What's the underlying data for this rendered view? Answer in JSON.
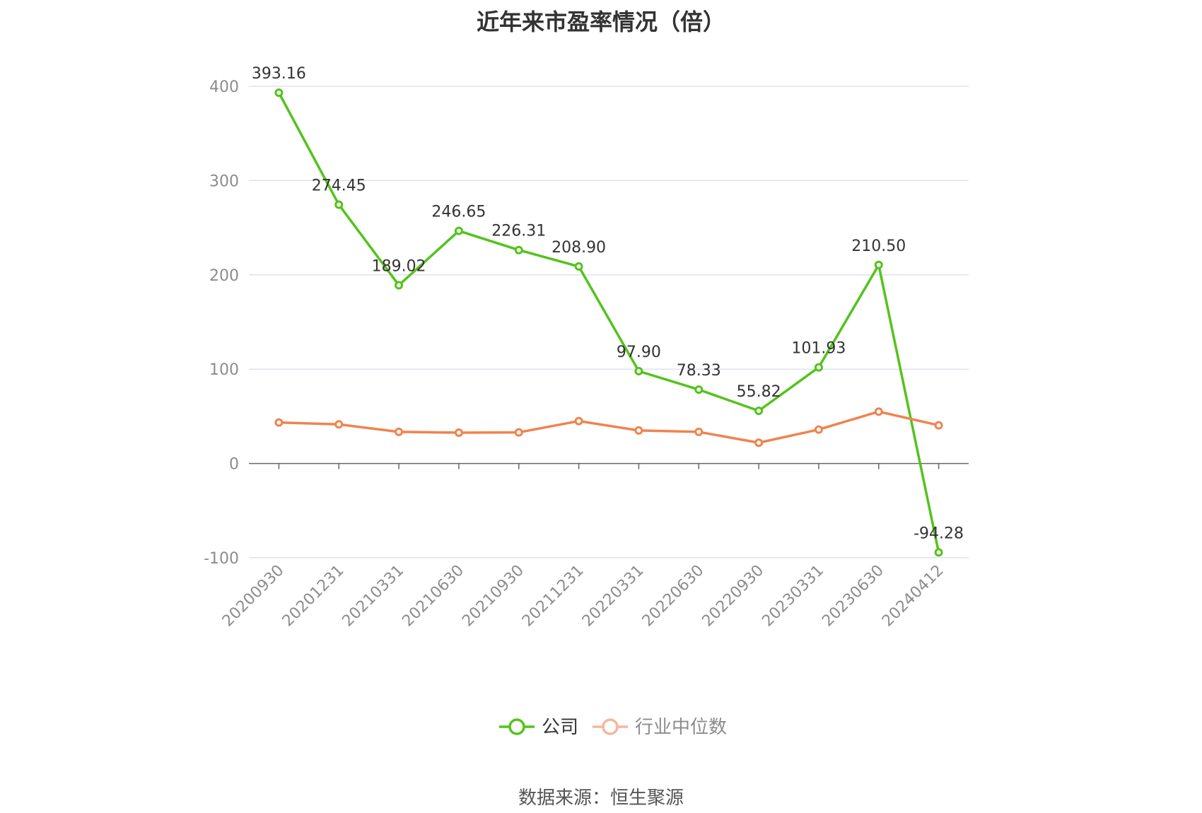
{
  "title": "近年来市盈率情况（倍）",
  "source_text": "数据来源：恒生聚源",
  "colors": {
    "company": "#52c41a",
    "industry": "#f0834e",
    "grid": "#dfe3f0",
    "axis": "#666666",
    "legend_industry": "#f6b79c"
  },
  "chart_data": {
    "type": "line",
    "title": "近年来市盈率情况（倍）",
    "xlabel": "",
    "ylabel": "",
    "categories": [
      "20200930",
      "20201231",
      "20210331",
      "20210630",
      "20210930",
      "20211231",
      "20220331",
      "20220630",
      "20220930",
      "20230331",
      "20230630",
      "20240412"
    ],
    "ylim": [
      -100,
      400
    ],
    "yticks": [
      -100,
      0,
      100,
      200,
      300,
      400
    ],
    "grid": true,
    "legend_position": "bottom-center",
    "series": [
      {
        "name": "公司",
        "color": "#52c41a",
        "show_labels": true,
        "values": [
          393.16,
          274.45,
          189.02,
          246.65,
          226.31,
          208.9,
          97.9,
          78.33,
          55.82,
          101.93,
          210.5,
          -94.28
        ],
        "labels": [
          "393.16",
          "274.45",
          "189.02",
          "246.65",
          "226.31",
          "208.90",
          "97.90",
          "78.33",
          "55.82",
          "101.93",
          "210.50",
          "-94.28"
        ]
      },
      {
        "name": "行业中位数",
        "color": "#f0834e",
        "show_labels": false,
        "values": [
          43.5,
          41.5,
          33.5,
          32.7,
          33.0,
          45.0,
          35.0,
          33.5,
          22.0,
          36.0,
          55.0,
          40.5
        ]
      }
    ]
  }
}
